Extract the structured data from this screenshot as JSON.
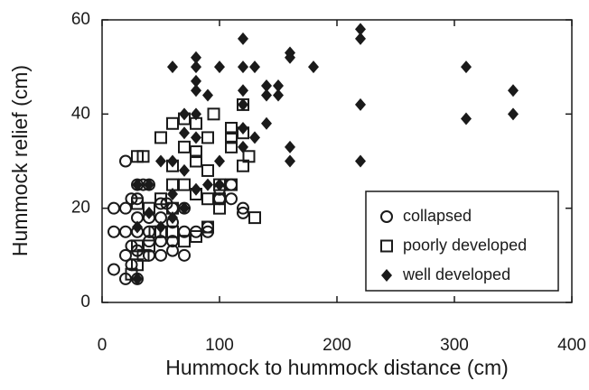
{
  "chart_data": {
    "type": "scatter",
    "xlabel": "Hummock to hummock distance (cm)",
    "ylabel": "Hummock relief (cm)",
    "xlim": [
      0,
      400
    ],
    "xticks": [
      0,
      100,
      200,
      300,
      400
    ],
    "ylim": [
      0,
      60
    ],
    "yticks": [
      0,
      20,
      40,
      60
    ],
    "legend": "lower right",
    "series": [
      {
        "name": "collapsed",
        "marker": "circle",
        "color": "#1a1a1a",
        "x": [
          20,
          10,
          10,
          20,
          20,
          30,
          30,
          35,
          40,
          25,
          30,
          40,
          30,
          40,
          50,
          50,
          55,
          60,
          70,
          60,
          50,
          60,
          70,
          80,
          90,
          70,
          90,
          100,
          100,
          110,
          110,
          120,
          120,
          20,
          25,
          30,
          40,
          20,
          30,
          10,
          25,
          40,
          50,
          60
        ],
        "values": [
          30,
          20,
          15,
          15,
          20,
          22,
          25,
          25,
          25,
          22,
          18,
          18,
          15,
          15,
          18,
          21,
          21,
          20,
          20,
          17,
          13,
          13,
          15,
          15,
          15,
          10,
          16,
          22,
          24,
          25,
          22,
          20,
          19,
          10,
          12,
          11,
          13,
          5,
          5,
          7,
          8,
          10,
          10,
          11
        ]
      },
      {
        "name": "poorly developed",
        "marker": "square",
        "color": "#1a1a1a",
        "x": [
          60,
          70,
          80,
          95,
          50,
          70,
          80,
          90,
          30,
          35,
          60,
          110,
          110,
          110,
          120,
          120,
          125,
          120,
          80,
          90,
          100,
          110,
          60,
          70,
          80,
          90,
          50,
          60,
          30,
          40,
          100,
          100,
          130,
          90,
          80,
          70,
          60,
          50,
          40,
          30,
          30,
          35,
          25,
          45
        ],
        "values": [
          38,
          39,
          38,
          40,
          35,
          33,
          32,
          35,
          31,
          31,
          29,
          37,
          33,
          35,
          42,
          36,
          31,
          29,
          30,
          28,
          25,
          25,
          25,
          25,
          23,
          22,
          22,
          20,
          21,
          20,
          22,
          20,
          18,
          16,
          14,
          13,
          15,
          15,
          12,
          12,
          8,
          10,
          6,
          15
        ]
      },
      {
        "name": "well developed",
        "marker": "diamond",
        "color": "#1a1a1a",
        "x": [
          60,
          80,
          80,
          80,
          80,
          100,
          120,
          120,
          130,
          140,
          150,
          150,
          160,
          160,
          180,
          220,
          220,
          220,
          220,
          310,
          310,
          350,
          350,
          120,
          140,
          130,
          160,
          160,
          120,
          120,
          100,
          80,
          90,
          70,
          80,
          60,
          50,
          70,
          60,
          40,
          30,
          70,
          80,
          90,
          40,
          50,
          30,
          30,
          60,
          120,
          140,
          100,
          70
        ],
        "values": [
          50,
          52,
          50,
          47,
          45,
          50,
          56,
          50,
          50,
          46,
          46,
          44,
          53,
          52,
          50,
          58,
          56,
          42,
          30,
          50,
          39,
          45,
          40,
          42,
          38,
          35,
          33,
          30,
          37,
          33,
          30,
          40,
          44,
          36,
          35,
          30,
          30,
          28,
          23,
          25,
          25,
          20,
          24,
          25,
          19,
          16,
          16,
          5,
          18,
          45,
          44,
          25,
          40
        ]
      }
    ]
  }
}
